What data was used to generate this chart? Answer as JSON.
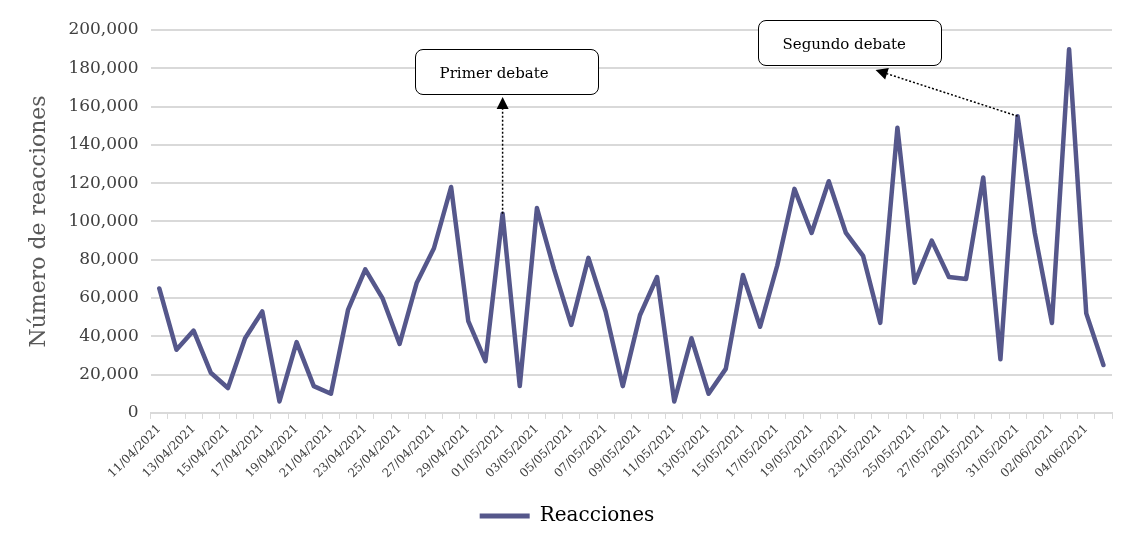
{
  "chart_data": {
    "type": "line",
    "ylabel": "Número de reacciones",
    "categories": [
      "11/04/2021",
      null,
      "13/04/2021",
      null,
      "15/04/2021",
      null,
      "17/04/2021",
      null,
      "19/04/2021",
      null,
      "21/04/2021",
      null,
      "23/04/2021",
      null,
      "25/04/2021",
      null,
      "27/04/2021",
      null,
      "29/04/2021",
      null,
      "01/05/2021",
      null,
      "03/05/2021",
      null,
      "05/05/2021",
      null,
      "07/05/2021",
      null,
      "09/05/2021",
      null,
      "11/05/2021",
      null,
      "13/05/2021",
      null,
      "15/05/2021",
      null,
      "17/05/2021",
      null,
      "19/05/2021",
      null,
      "21/05/2021",
      null,
      "23/05/2021",
      null,
      "25/05/2021",
      null,
      "27/05/2021",
      null,
      "29/05/2021",
      null,
      "31/05/2021",
      null,
      "02/06/2021",
      null,
      "04/06/2021",
      null
    ],
    "series": [
      {
        "name": "Reacciones",
        "color": "#55578b",
        "values": [
          65000,
          33000,
          43000,
          21000,
          13000,
          39000,
          53000,
          6000,
          37000,
          14000,
          10000,
          54000,
          75000,
          60000,
          36000,
          68000,
          86000,
          118000,
          48000,
          27000,
          104000,
          14000,
          107000,
          75000,
          46000,
          81000,
          53000,
          14000,
          51000,
          71000,
          6000,
          39000,
          10000,
          23000,
          72000,
          45000,
          77000,
          117000,
          94000,
          121000,
          94000,
          82000,
          47000,
          149000,
          68000,
          90000,
          71000,
          70000,
          123000,
          28000,
          155000,
          94000,
          47000,
          190000,
          52000,
          25000
        ]
      }
    ],
    "ylim": [
      0,
      200000
    ],
    "yticks": [
      0,
      {
        "value": 20000,
        "label": "20,000"
      },
      {
        "value": 40000,
        "label": "40,000"
      },
      {
        "value": 60000,
        "label": "60,000"
      },
      {
        "value": 80000,
        "label": "80,000"
      },
      {
        "value": 100000,
        "label": "100,000"
      },
      {
        "value": 120000,
        "label": "120,000"
      },
      {
        "value": 140000,
        "label": "140,000"
      },
      {
        "value": 160000,
        "label": "160,000"
      },
      {
        "value": 180000,
        "label": "180,000"
      },
      {
        "value": 200000,
        "label": "200,000"
      }
    ],
    "grid": "y",
    "legend": "bottom",
    "marker": "none",
    "line_style": "solid",
    "annotations": [
      "Primer debate",
      "Segundo debate"
    ]
  }
}
